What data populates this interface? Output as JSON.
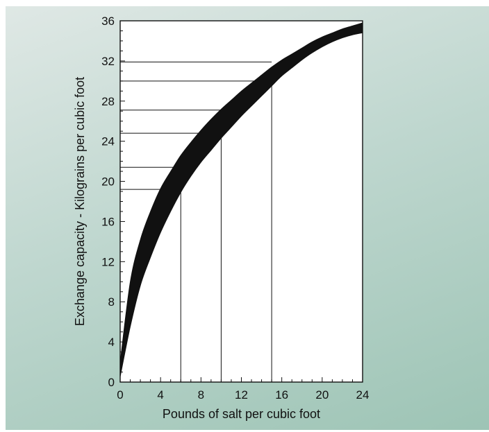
{
  "chart_data": {
    "type": "area",
    "title": "",
    "xlabel": "Pounds of salt per cubic foot",
    "ylabel": "Exchange capacity - Kilograins per cubic foot",
    "xlim": [
      0,
      24
    ],
    "ylim": [
      0,
      36
    ],
    "x_ticks": [
      "0",
      "4",
      "8",
      "12",
      "16",
      "20",
      "24"
    ],
    "y_ticks": [
      "0",
      "4",
      "8",
      "12",
      "16",
      "20",
      "24",
      "28",
      "32",
      "36"
    ],
    "grid": false,
    "band": {
      "x": [
        0,
        1,
        2,
        3,
        4,
        5,
        6,
        7,
        8,
        9,
        10,
        11,
        12,
        13,
        14,
        15,
        16,
        17,
        18,
        19,
        20,
        21,
        22,
        23,
        24
      ],
      "upper": [
        2.0,
        10.0,
        14.2,
        17.0,
        19.3,
        21.0,
        22.6,
        23.9,
        25.1,
        26.2,
        27.2,
        28.1,
        29.0,
        29.8,
        30.6,
        31.4,
        32.1,
        32.7,
        33.3,
        33.9,
        34.4,
        34.8,
        35.2,
        35.5,
        35.8
      ],
      "lower": [
        0.5,
        5.5,
        9.6,
        12.4,
        14.9,
        17.0,
        18.9,
        20.5,
        21.9,
        23.1,
        24.3,
        25.4,
        26.5,
        27.5,
        28.5,
        29.5,
        30.5,
        31.3,
        32.1,
        32.8,
        33.4,
        33.9,
        34.3,
        34.6,
        34.8
      ]
    },
    "reference_points": [
      {
        "x": 6,
        "y": 19.2
      },
      {
        "x": 6,
        "y": 21.4
      },
      {
        "x": 8,
        "y": 24.8
      },
      {
        "x": 10,
        "y": 27.1
      },
      {
        "x": 15,
        "y": 30
      },
      {
        "x": 15,
        "y": 31.9
      }
    ],
    "vertical_markers": [
      6,
      10,
      15
    ]
  }
}
